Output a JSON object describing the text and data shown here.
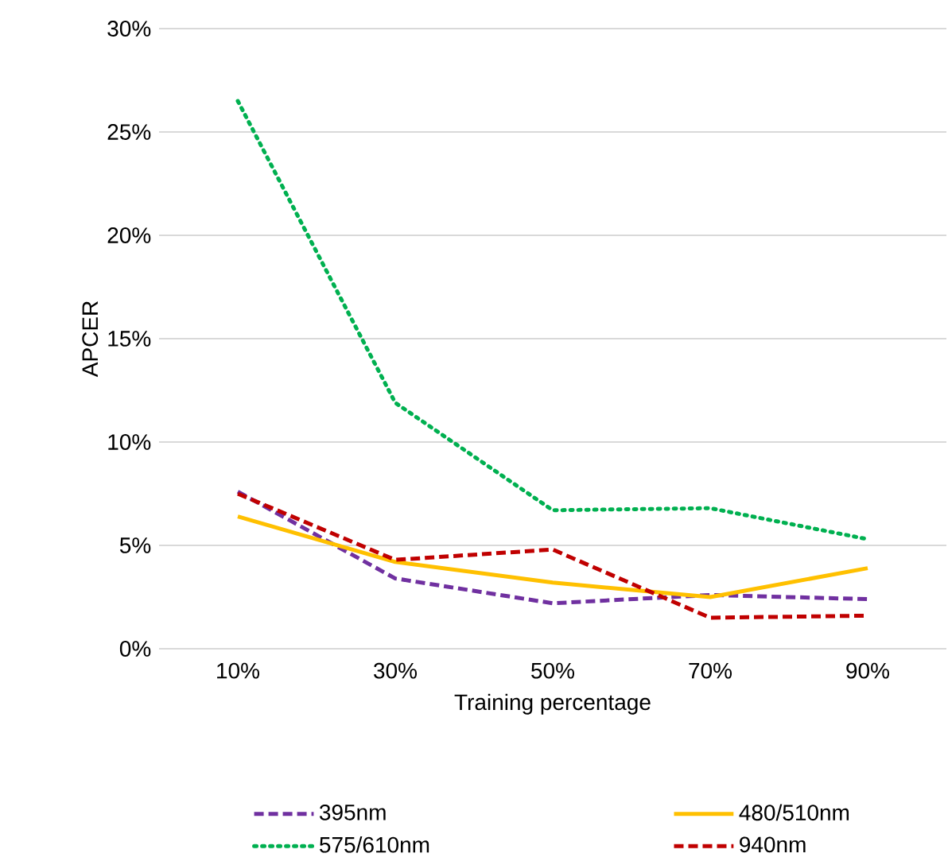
{
  "chart_data": {
    "type": "line",
    "xlabel": "Training percentage",
    "ylabel": "APCER",
    "categories": [
      "10%",
      "30%",
      "50%",
      "70%",
      "90%"
    ],
    "series": [
      {
        "name": "395nm",
        "color": "#7030a0",
        "line_style": "dashed",
        "values": [
          7.6,
          3.4,
          2.2,
          2.6,
          2.4
        ]
      },
      {
        "name": "480/510nm",
        "color": "#ffc000",
        "line_style": "solid",
        "values": [
          6.4,
          4.2,
          3.2,
          2.5,
          3.9
        ]
      },
      {
        "name": "575/610nm",
        "color": "#00b050",
        "line_style": "dotted",
        "values": [
          26.5,
          11.9,
          6.7,
          6.8,
          5.3
        ]
      },
      {
        "name": "940nm",
        "color": "#c00000",
        "line_style": "dashed",
        "values": [
          7.5,
          4.3,
          4.8,
          1.5,
          1.6
        ]
      }
    ],
    "ylim": [
      0,
      30
    ],
    "yticks": [
      {
        "value": 0,
        "label": "0%"
      },
      {
        "value": 5,
        "label": "5%"
      },
      {
        "value": 10,
        "label": "10%"
      },
      {
        "value": 15,
        "label": "15%"
      },
      {
        "value": 20,
        "label": "20%"
      },
      {
        "value": 25,
        "label": "25%"
      },
      {
        "value": 30,
        "label": "30%"
      }
    ],
    "grid": "y",
    "legend": "bottom",
    "marker": "none"
  }
}
